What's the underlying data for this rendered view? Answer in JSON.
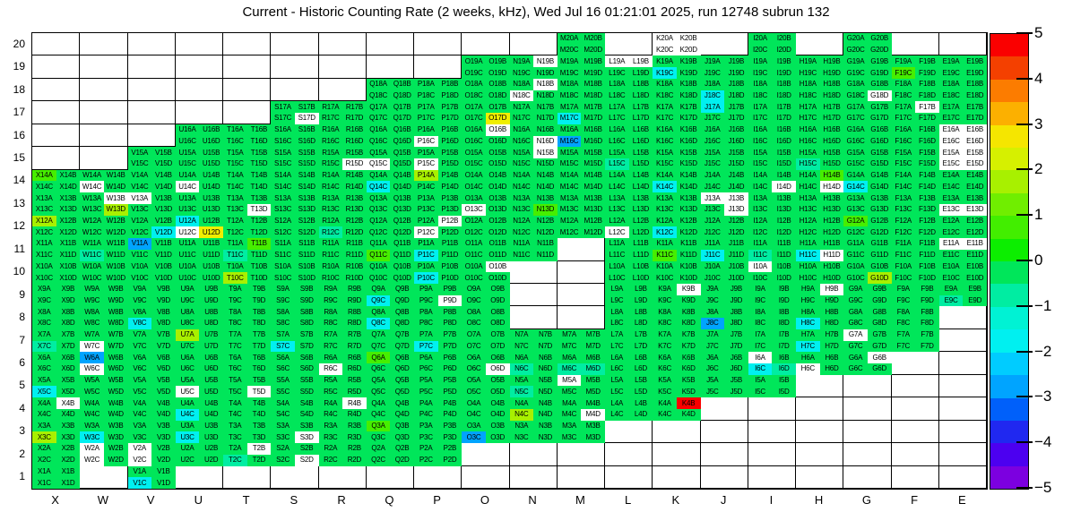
{
  "title": "Current - Historic Counting Rate (2 weeks, kHz), Wed Jul 16 01:21:01 2025, run 12748 subrun 132",
  "chart_data": {
    "type": "heatmap",
    "title": "Current - Historic Counting Rate (2 weeks, kHz), Wed Jul 16 01:21:01 2025, run 12748 subrun 132",
    "x_axis_labels": [
      "X",
      "W",
      "V",
      "U",
      "T",
      "S",
      "R",
      "Q",
      "P",
      "O",
      "N",
      "M",
      "L",
      "K",
      "J",
      "I",
      "H",
      "G",
      "F",
      "E"
    ],
    "y_axis_labels": [
      20,
      19,
      18,
      17,
      16,
      15,
      14,
      13,
      12,
      11,
      10,
      9,
      8,
      7,
      6,
      5,
      4,
      3,
      2,
      1
    ],
    "channels": [
      "A",
      "B",
      "C",
      "D"
    ],
    "label_format": "{column}{row}{channel}",
    "value_scale": {
      "min": -5,
      "max": 5,
      "tick_values": [
        5,
        4,
        3,
        2,
        1,
        0,
        -1,
        -2,
        -3,
        -4,
        -5
      ],
      "tick_labels": [
        "5",
        "4",
        "3",
        "2",
        "1",
        "0",
        "−1",
        "−2",
        "−3",
        "−4",
        "−5"
      ]
    },
    "palette": {
      "g": "#00e65a",
      "b": "#46ee00",
      "h": "#a8f000",
      "y": "#f0ee00",
      "r": "#fa0000",
      "s": "#00eda2",
      "c": "#00f0f0",
      "l": "#00a4ff",
      "w": "#ffffff"
    },
    "palette_legend": {
      "g": "green ~0",
      "b": "bright green ~+1",
      "h": "chartreuse ~+2",
      "y": "yellow ~+2.5",
      "r": "red ~+5",
      "s": "spring green ~-0.5",
      "c": "cyan ~-2",
      "l": "blue ~-3",
      "w": "white / no data"
    },
    "colorbar_colors_top_to_bottom": [
      "#fa0000",
      "#f44000",
      "#fc7c00",
      "#fcb000",
      "#f5e600",
      "#d6f000",
      "#a8f000",
      "#70ee00",
      "#42ee00",
      "#0cee00",
      "#00e65a",
      "#00eda2",
      "#00f2d4",
      "#00f0f0",
      "#00ccff",
      "#00a4ff",
      "#0060fa",
      "#2028f0",
      "#4c00f0",
      "#7c00e0"
    ],
    "rows": [
      {
        "row": 20,
        "cells": {
          "M": "gggg",
          "K": "wwww",
          "I": "gggg",
          "G": "gggg"
        }
      },
      {
        "row": 19,
        "cells": {
          "O": "gggg",
          "N": "gwgg",
          "M": "gggg",
          "L": "wwgg",
          "K": "ggcg",
          "J": "gggg",
          "I": "gggg",
          "H": "gggg",
          "G": "gggg",
          "F": "ggbg",
          "E": "gggg"
        }
      },
      {
        "row": 18,
        "cells": {
          "Q": "gggg",
          "P": "gggg",
          "O": "gggg",
          "N": "gwwg",
          "M": "gggg",
          "L": "gggg",
          "K": "gggg",
          "J": "ggcg",
          "I": "gggg",
          "H": "gggg",
          "G": "gggw",
          "F": "gggg",
          "E": "gggg"
        }
      },
      {
        "row": 17,
        "cells": {
          "S": "gggw",
          "R": "gggg",
          "Q": "gggg",
          "P": "gggg",
          "O": "gggy",
          "N": "gggg",
          "M": "ggcg",
          "L": "gggg",
          "K": "gggg",
          "J": "cggg",
          "I": "gggg",
          "H": "gggg",
          "G": "gggg",
          "F": "gwgg",
          "E": "gggg"
        }
      },
      {
        "row": 16,
        "cells": {
          "U": "gggg",
          "T": "gggg",
          "S": "gggg",
          "R": "gggg",
          "Q": "gggg",
          "P": "ggwg",
          "O": "gwgg",
          "N": "gggw",
          "M": "gglg",
          "L": "gggg",
          "K": "gggg",
          "J": "gggg",
          "I": "gggg",
          "H": "gggg",
          "G": "gggg",
          "F": "gggg",
          "E": "wwww"
        }
      },
      {
        "row": 15,
        "cells": {
          "V": "gggg",
          "U": "gggg",
          "T": "gggg",
          "S": "gggg",
          "R": "gggw",
          "Q": "ggwg",
          "P": "ggwg",
          "O": "gggg",
          "N": "gwgg",
          "M": "gggg",
          "L": "ggsg",
          "K": "gggg",
          "J": "gggg",
          "I": "gggg",
          "H": "ggsg",
          "G": "gggg",
          "F": "gggg",
          "E": "wwww"
        }
      },
      {
        "row": 14,
        "cells": {
          "X": "bggg",
          "W": "ggwg",
          "V": "gggg",
          "U": "ggwg",
          "T": "gggg",
          "S": "gggg",
          "R": "gggg",
          "Q": "ggcg",
          "P": "hggg",
          "O": "gggg",
          "N": "gggg",
          "M": "gggg",
          "L": "gggg",
          "K": "ggcg",
          "J": "gggg",
          "I": "gggw",
          "H": "gbgw",
          "G": "ggcg",
          "F": "gggg",
          "E": "gggg"
        }
      },
      {
        "row": 13,
        "cells": {
          "X": "gggg",
          "W": "gwgh",
          "V": "wggg",
          "U": "gggg",
          "T": "gggw",
          "S": "gggg",
          "R": "gggg",
          "Q": "gggg",
          "P": "gggg",
          "O": "ggwg",
          "N": "gggb",
          "M": "gggg",
          "L": "gggg",
          "K": "gggg",
          "J": "wwgw",
          "I": "gggg",
          "H": "gggg",
          "G": "gggg",
          "F": "gggg",
          "E": "ggww"
        }
      },
      {
        "row": 12,
        "cells": {
          "X": "hggg",
          "W": "gggg",
          "V": "gggc",
          "U": "cgwy",
          "T": "gggg",
          "S": "gggg",
          "R": "ggsg",
          "Q": "gggg",
          "P": "gwwg",
          "O": "gggg",
          "N": "gggg",
          "M": "gggg",
          "L": "ggwg",
          "K": "ggcg",
          "J": "gggg",
          "I": "gggg",
          "H": "gggg",
          "G": "bggg",
          "F": "gggg",
          "E": "gggg"
        }
      },
      {
        "row": 11,
        "cells": {
          "X": "gggg",
          "W": "ggsg",
          "V": "lggg",
          "U": "gggg",
          "T": "gbsg",
          "S": "gggg",
          "R": "gggg",
          "Q": "ggbg",
          "P": "ggcg",
          "O": "gggg",
          "N": "gggg",
          "L": "gggg",
          "K": "ggbg",
          "J": "ggcg",
          "I": "ggsg",
          "H": "ggcw",
          "G": "gggg",
          "F": "gggg",
          "E": "wwgg"
        }
      },
      {
        "row": 10,
        "cells": {
          "X": "gggg",
          "W": "gggg",
          "V": "gggg",
          "U": "gggg",
          "T": "gghg",
          "S": "gggg",
          "R": "gggg",
          "Q": "gggg",
          "P": "ggcg",
          "O": "gwgg",
          "L": "gggg",
          "K": "gggg",
          "J": "gggg",
          "I": "wggg",
          "H": "gggg",
          "G": "gggh",
          "F": "gggg",
          "E": "gggg"
        }
      },
      {
        "row": 9,
        "cells": {
          "X": "gggg",
          "W": "gggg",
          "V": "gggg",
          "U": "gggg",
          "T": "gggg",
          "S": "gggg",
          "R": "gggg",
          "Q": "ggcg",
          "P": "gggw",
          "O": "gggg",
          "L": "gggg",
          "K": "gwgg",
          "J": "gggg",
          "I": "gggg",
          "H": "gwgg",
          "G": "gggg",
          "F": "gggg",
          "E": "ggsg"
        }
      },
      {
        "row": 8,
        "cells": {
          "X": "gggg",
          "W": "gggg",
          "V": "ggcg",
          "U": "gggg",
          "T": "gggg",
          "S": "gggg",
          "R": "gggg",
          "Q": "ggcg",
          "P": "gggg",
          "O": "gggg",
          "L": "gggg",
          "K": "gggg",
          "J": "gglg",
          "I": "gggg",
          "H": "ggcg",
          "G": "gggg",
          "F": "gggg"
        }
      },
      {
        "row": 7,
        "cells": {
          "X": "ggsg",
          "W": "ggwg",
          "V": "gggg",
          "U": "hggg",
          "T": "gggg",
          "S": "ggcg",
          "R": "gggg",
          "Q": "gggg",
          "P": "ggcg",
          "O": "gggg",
          "N": "gggg",
          "M": "gggg",
          "L": "gggg",
          "K": "gggg",
          "J": "gggg",
          "I": "gggg",
          "H": "ggcg",
          "G": "wggg",
          "F": "gggg"
        }
      },
      {
        "row": 6,
        "cells": {
          "X": "gggg",
          "W": "lgwg",
          "V": "gggg",
          "U": "gggg",
          "T": "gggg",
          "S": "gggg",
          "R": "ggwg",
          "Q": "bggg",
          "P": "gggg",
          "O": "gggw",
          "N": "ggsg",
          "M": "ggss",
          "L": "gggg",
          "K": "gggg",
          "J": "gggg",
          "I": "wgcs",
          "H": "ggwg",
          "G": "gwgg"
        }
      },
      {
        "row": 5,
        "cells": {
          "X": "ggcg",
          "W": "gggg",
          "V": "gggg",
          "U": "ggwg",
          "T": "gggw",
          "S": "gggg",
          "R": "gggg",
          "Q": "gggg",
          "P": "gggg",
          "O": "gggg",
          "N": "ggsg",
          "M": "wggg",
          "L": "gggg",
          "K": "gggg",
          "J": "gggg",
          "I": "gggg"
        }
      },
      {
        "row": 4,
        "cells": {
          "X": "gwgg",
          "W": "gggg",
          "V": "gggg",
          "U": "ggcg",
          "T": "gggg",
          "S": "gggg",
          "R": "gwgg",
          "Q": "gggg",
          "P": "gggg",
          "O": "gggg",
          "N": "gghg",
          "M": "gggw",
          "L": "gggg",
          "K": "grgg"
        }
      },
      {
        "row": 3,
        "cells": {
          "X": "gghg",
          "W": "ggcg",
          "V": "gggg",
          "U": "ggcg",
          "T": "gggg",
          "S": "gggw",
          "R": "gggg",
          "Q": "bggg",
          "P": "gggg",
          "O": "gglg",
          "N": "gggg",
          "M": "gggg"
        }
      },
      {
        "row": 2,
        "cells": {
          "X": "gggg",
          "W": "wgwg",
          "V": "wgwg",
          "U": "gggg",
          "T": "gwsg",
          "S": "gggw",
          "R": "gggg",
          "Q": "gggg",
          "P": "gggg"
        }
      },
      {
        "row": 1,
        "cells": {
          "X": "gggg",
          "V": "ggcg"
        }
      }
    ]
  }
}
